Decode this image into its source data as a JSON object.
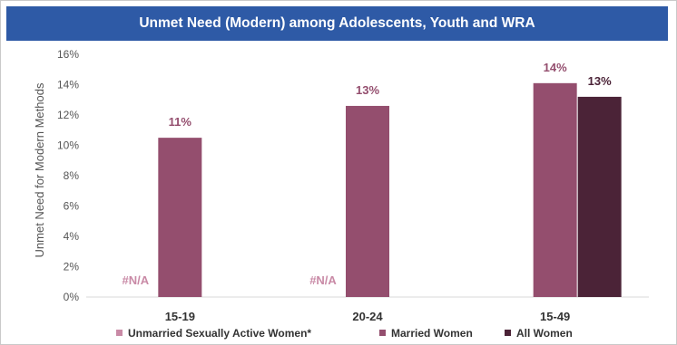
{
  "chart_data": {
    "type": "bar",
    "title": "Unmet Need (Modern) among Adolescents, Youth and WRA",
    "ylabel": "Unmet Need for Modern Methods",
    "xlabel": "",
    "categories": [
      "15-19",
      "20-24",
      "15-49"
    ],
    "ylim": [
      0,
      16
    ],
    "yticks": [
      "0%",
      "2%",
      "4%",
      "6%",
      "8%",
      "10%",
      "12%",
      "14%",
      "16%"
    ],
    "grid": false,
    "legend_position": "bottom",
    "series": [
      {
        "name": "Unmarried Sexually Active Women*",
        "color": "#c98aa6",
        "values": [
          null,
          null,
          null
        ],
        "labels": [
          "#N/A",
          "#N/A",
          ""
        ]
      },
      {
        "name": "Married Women",
        "color": "#944e6e",
        "values": [
          10.5,
          12.6,
          14.1
        ],
        "labels": [
          "11%",
          "13%",
          "14%"
        ]
      },
      {
        "name": "All Women",
        "color": "#4b2337",
        "values": [
          null,
          null,
          13.2
        ],
        "labels": [
          "",
          "",
          "13%"
        ]
      }
    ]
  }
}
